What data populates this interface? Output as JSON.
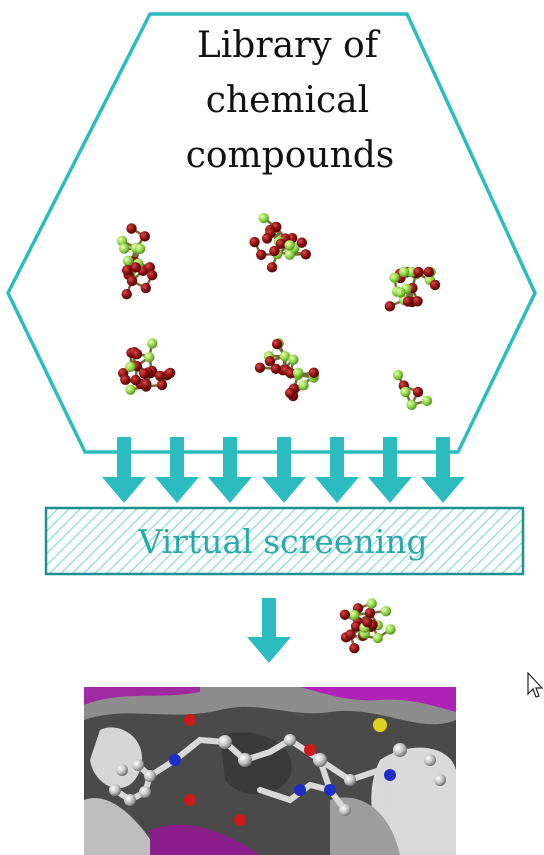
{
  "library": {
    "title_lines": [
      "Library of",
      "chemical",
      "compounds"
    ]
  },
  "screening": {
    "label": "Virtual screening"
  },
  "colors": {
    "accent": "#2cbcbf",
    "atom_red": "#8e1010",
    "atom_green": "#93d64a",
    "bond": "#7a6a3a"
  },
  "icons": {
    "arrows": "down-arrow-icon",
    "cursor": "mouse-pointer-icon"
  },
  "image": {
    "description_name": "protein-ligand-docking-image"
  }
}
